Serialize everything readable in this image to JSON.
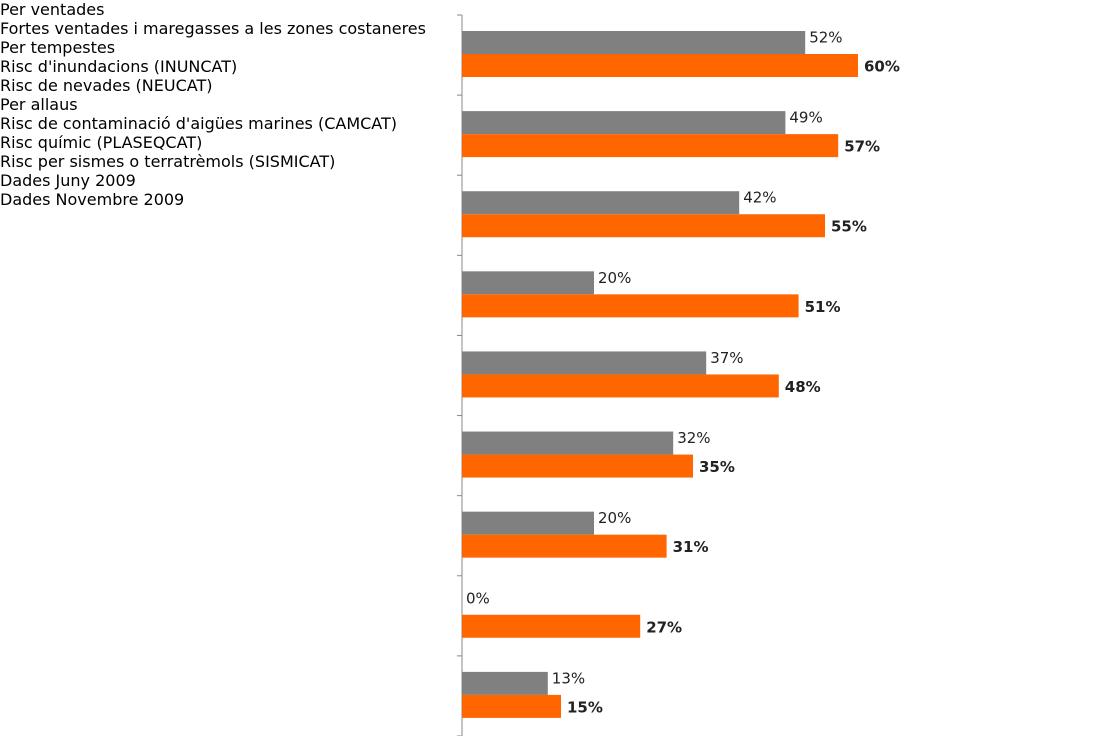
{
  "chart_data": {
    "type": "hbar",
    "categories": [
      "Per ventades",
      "Fortes ventades i maregasses a les zones costaneres",
      "Per tempestes",
      "Risc d'inundacions (INUNCAT)",
      "Risc de nevades (NEUCAT)",
      "Per allaus",
      "Risc de contaminació d'aigües marines (CAMCAT)",
      "Risc químic (PLASEQCAT)",
      "Risc per sismes o terratrèmols (SISMICAT)"
    ],
    "series": [
      {
        "name": "Dades Juny 2009",
        "color": "#808080",
        "values": [
          52,
          49,
          42,
          20,
          37,
          32,
          20,
          0,
          13
        ],
        "value_labels": [
          "52%",
          "49%",
          "42%",
          "20%",
          "37%",
          "32%",
          "20%",
          "0%",
          "13%"
        ]
      },
      {
        "name": "Dades Novembre 2009",
        "color": "#ff6600",
        "values": [
          60,
          57,
          55,
          51,
          48,
          35,
          31,
          27,
          15
        ],
        "value_labels": [
          "60%",
          "57%",
          "55%",
          "51%",
          "48%",
          "35%",
          "31%",
          "27%",
          "15%"
        ]
      }
    ],
    "xlim": [
      0,
      100
    ],
    "legend": "right"
  }
}
